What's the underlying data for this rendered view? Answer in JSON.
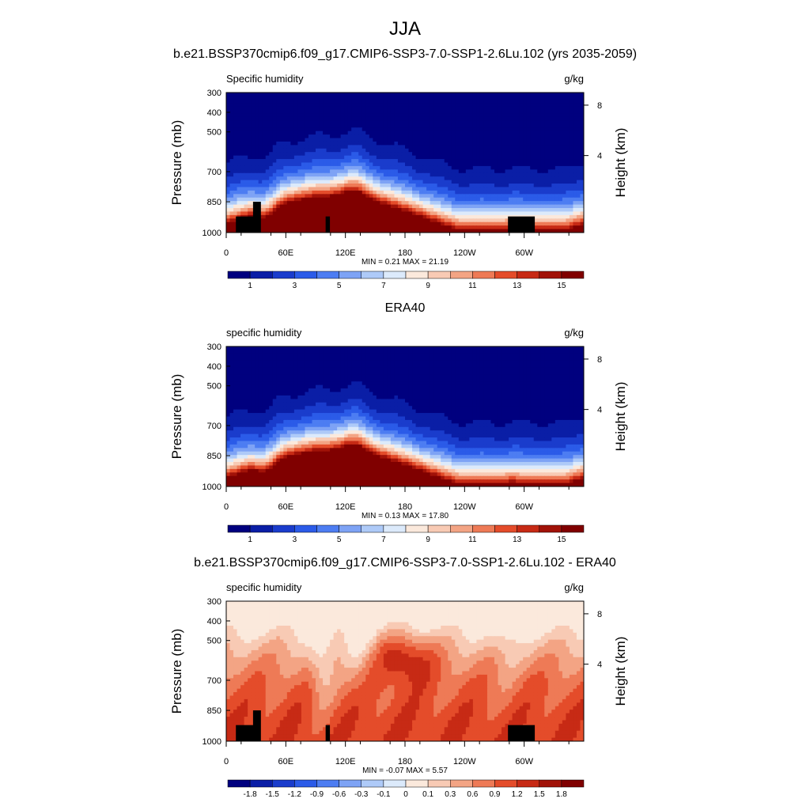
{
  "figure": {
    "title": "JJA"
  },
  "colormap": [
    "#00007f",
    "#0a1ea6",
    "#1a3ccc",
    "#2b5be8",
    "#4d7df2",
    "#7ea3f5",
    "#aecaf8",
    "#dceafb",
    "#fbe9dc",
    "#f8cab4",
    "#f3a484",
    "#ee7a56",
    "#e44c2a",
    "#c72a15",
    "#a11208",
    "#800000"
  ],
  "chart_data": [
    {
      "type": "heatmap",
      "title": "b.e21.BSSP370cmip6.f09_g17.CMIP6-SSP3-7.0-SSP1-2.6Lu.102 (yrs 2035-2059)",
      "field": "Specific humidity",
      "units": "g/kg",
      "ylabel": "Pressure (mb)",
      "ylabel_right": "Height (km)",
      "xticks": [
        "0",
        "60E",
        "120E",
        "180",
        "120W",
        "60W"
      ],
      "yticks": [
        "300",
        "400",
        "500",
        "700",
        "850",
        "1000"
      ],
      "yticks_right": [
        "8",
        "4"
      ],
      "stats": "MIN =   0.21  MAX =  21.19",
      "colorbar_labels": [
        "1",
        "3",
        "5",
        "7",
        "9",
        "11",
        "13",
        "15"
      ],
      "value_range": [
        0.21,
        21.19
      ],
      "kind": "abs",
      "has_topography": true
    },
    {
      "type": "heatmap",
      "title": "ERA40",
      "field": "specific humidity",
      "units": "g/kg",
      "ylabel": "Pressure (mb)",
      "ylabel_right": "Height (km)",
      "xticks": [
        "0",
        "60E",
        "120E",
        "180",
        "120W",
        "60W"
      ],
      "yticks": [
        "300",
        "400",
        "500",
        "700",
        "850",
        "1000"
      ],
      "yticks_right": [
        "8",
        "4"
      ],
      "stats": "MIN =   0.13  MAX =  17.80",
      "colorbar_labels": [
        "1",
        "3",
        "5",
        "7",
        "9",
        "11",
        "13",
        "15"
      ],
      "value_range": [
        0.13,
        17.8
      ],
      "kind": "abs",
      "has_topography": false
    },
    {
      "type": "heatmap",
      "title": "b.e21.BSSP370cmip6.f09_g17.CMIP6-SSP3-7.0-SSP1-2.6Lu.102 - ERA40",
      "field": "specific humidity",
      "units": "g/kg",
      "ylabel": "Pressure (mb)",
      "ylabel_right": "Height (km)",
      "xticks": [
        "0",
        "60E",
        "120E",
        "180",
        "120W",
        "60W"
      ],
      "yticks": [
        "300",
        "400",
        "500",
        "700",
        "850",
        "1000"
      ],
      "yticks_right": [
        "8",
        "4"
      ],
      "stats": "MIN =  -0.07  MAX =   5.57",
      "colorbar_labels": [
        "-1.8",
        "-1.5",
        "-1.2",
        "-0.9",
        "-0.6",
        "-0.3",
        "-0.1",
        "0",
        "0.1",
        "0.3",
        "0.6",
        "0.9",
        "1.2",
        "1.5",
        "1.8"
      ],
      "value_range": [
        -0.07,
        5.57
      ],
      "kind": "diff",
      "has_topography": true
    }
  ]
}
